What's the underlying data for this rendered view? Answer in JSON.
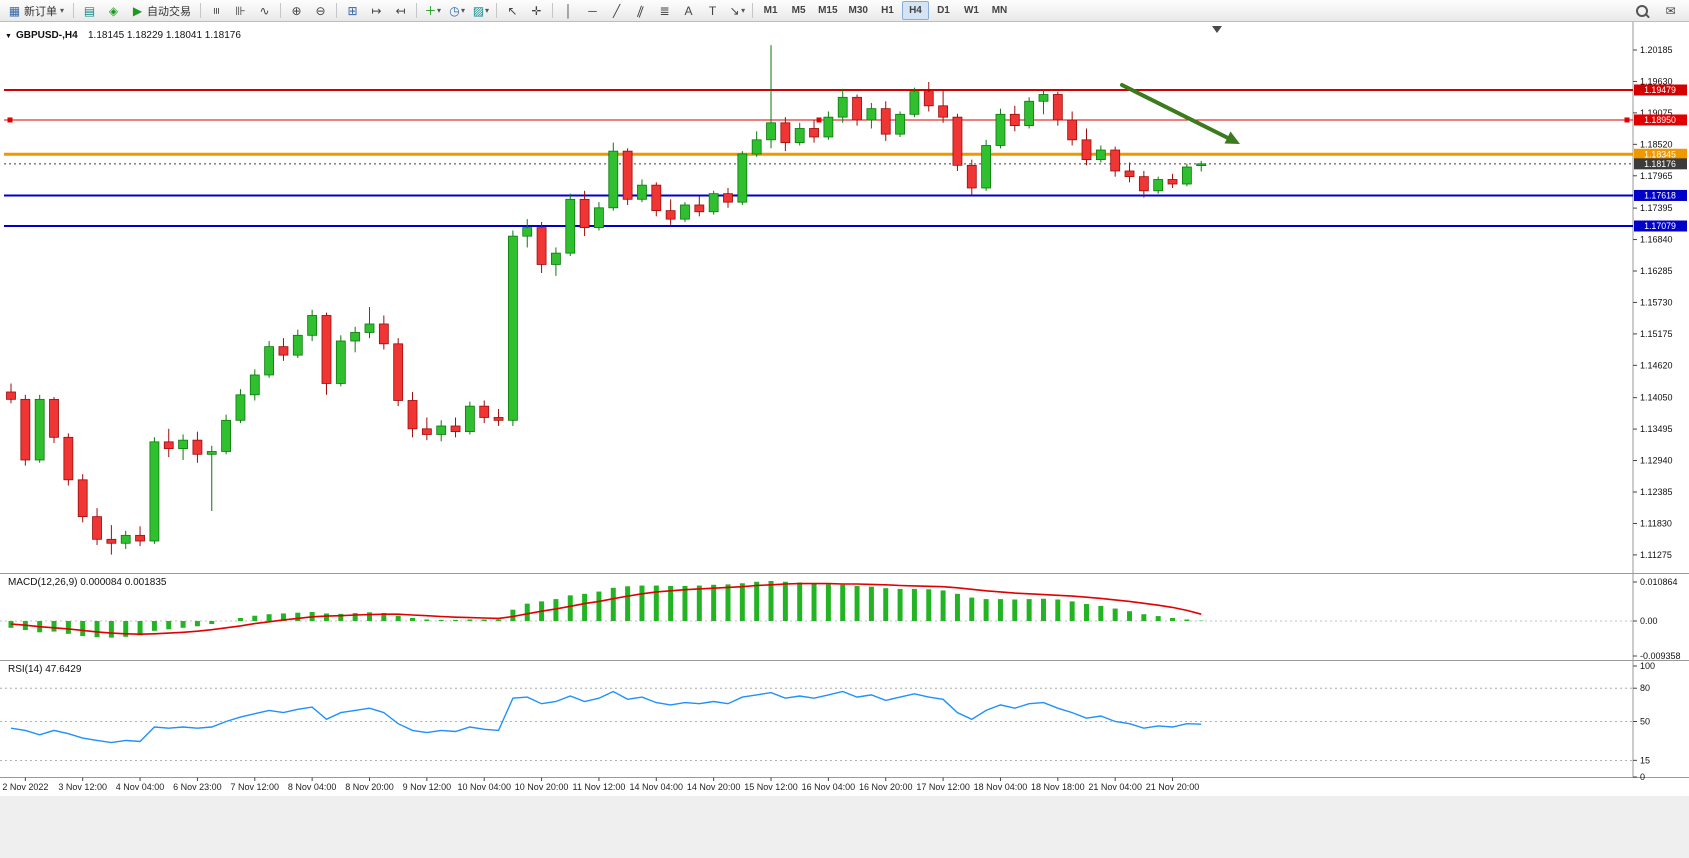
{
  "window": {
    "toolbar": {
      "new_order": "新订单",
      "autotrading": "自动交易",
      "timeframes": [
        "M1",
        "M5",
        "M15",
        "M30",
        "H1",
        "H4",
        "D1",
        "W1",
        "MN"
      ],
      "active_timeframe": "H4"
    },
    "icons": {
      "caret": "▾",
      "new_order": "▦",
      "terminal": "▤",
      "metaeditor": "◈",
      "autotrading_play": "▶",
      "bar_chart": "≡",
      "candlestick_chart": "⊪",
      "line_chart": "∿",
      "zoom_in": "⊕",
      "zoom_out": "⊖",
      "tile_windows": "⊞",
      "auto_scroll": "↦",
      "chart_shift": "↤",
      "indicators_add": "＋",
      "periods": "◷",
      "templates": "▨",
      "cursor": "↖",
      "crosshair": "✛",
      "vertical_line": "│",
      "horizontal_line": "─",
      "trendline": "╱",
      "channel": "∥",
      "fibonacci": "≣",
      "text": "A",
      "text_label": "T",
      "arrows": "↘",
      "chat": "✉",
      "search": "css-magnifier",
      "collapse": "▼"
    }
  },
  "chart": {
    "symbol_label": "GBPUSD-,H4",
    "oh": "1.18145",
    "ohlc": "1.18145 1.18229 1.18041 1.18176",
    "bid_price": "1.18176",
    "price_axis_ticks": [
      "1.20185",
      "1.19630",
      "1.19075",
      "1.18520",
      "1.17965",
      "1.17395",
      "1.16840",
      "1.16285",
      "1.15730",
      "1.15175",
      "1.14620",
      "1.14050",
      "1.13495",
      "1.12940",
      "1.12385",
      "1.11830",
      "1.11275"
    ],
    "time_axis_labels": [
      "2 Nov 2022",
      "3 Nov 12:00",
      "4 Nov 04:00",
      "6 Nov 23:00",
      "7 Nov 12:00",
      "8 Nov 04:00",
      "8 Nov 20:00",
      "9 Nov 12:00",
      "10 Nov 04:00",
      "10 Nov 20:00",
      "11 Nov 12:00",
      "14 Nov 04:00",
      "14 Nov 20:00",
      "15 Nov 12:00",
      "16 Nov 04:00",
      "16 Nov 20:00",
      "17 Nov 12:00",
      "18 Nov 04:00",
      "18 Nov 18:00",
      "21 Nov 04:00",
      "21 Nov 20:00"
    ],
    "hlines": [
      {
        "price": "1.19479",
        "color": "#d20000",
        "width": 2
      },
      {
        "price": "1.18950",
        "color": "#e00000",
        "width": 1,
        "selected": true
      },
      {
        "price": "1.18345",
        "color": "#f09800",
        "width": 3
      },
      {
        "price": "1.17618",
        "color": "#0000c8",
        "width": 2
      },
      {
        "price": "1.17079",
        "color": "#0000c8",
        "width": 2
      }
    ],
    "trend_arrow": {
      "color": "#3c7a1e",
      "direction": "down-right"
    },
    "macd_label": "MACD(12,26,9) 0.000084 0.001835",
    "macd_axis": [
      "0.010864",
      "0.00",
      "-0.009358"
    ],
    "rsi_label": "RSI(14) 47.6429",
    "rsi_levels": [
      "100",
      "80",
      "50",
      "15",
      "0"
    ]
  },
  "colors": {
    "up": "#2fbf2f",
    "up_edge": "#0b7a0b",
    "down": "#f03535",
    "down_edge": "#9e0b0b",
    "macd_hist": "#22b422",
    "macd_signal": "#e00000",
    "rsi_line": "#1e90ff",
    "bid_line": "#3c3c3c",
    "axis_text": "#111111"
  },
  "chart_data": {
    "type": "candlestick",
    "symbol": "GBPUSD",
    "timeframe": "H4",
    "title": "GBPUSD-,H4",
    "ohlc_current": [
      1.18145,
      1.18229,
      1.18041,
      1.18176
    ],
    "price_range_visible": [
      1.11275,
      1.20185
    ],
    "candles": [
      [
        1.1415,
        1.143,
        1.1395,
        1.1402
      ],
      [
        1.1402,
        1.141,
        1.1285,
        1.1295
      ],
      [
        1.1295,
        1.141,
        1.129,
        1.1402
      ],
      [
        1.1402,
        1.1406,
        1.1325,
        1.1335
      ],
      [
        1.1335,
        1.1342,
        1.125,
        1.126
      ],
      [
        1.126,
        1.127,
        1.1185,
        1.1195
      ],
      [
        1.1195,
        1.121,
        1.1145,
        1.1155
      ],
      [
        1.1155,
        1.118,
        1.1128,
        1.1148
      ],
      [
        1.1148,
        1.117,
        1.1138,
        1.1162
      ],
      [
        1.1162,
        1.1178,
        1.1143,
        1.1152
      ],
      [
        1.1152,
        1.1335,
        1.1147,
        1.1327
      ],
      [
        1.1327,
        1.135,
        1.13,
        1.1315
      ],
      [
        1.1315,
        1.134,
        1.1295,
        1.133
      ],
      [
        1.133,
        1.1345,
        1.129,
        1.1305
      ],
      [
        1.1305,
        1.132,
        1.1205,
        1.131
      ],
      [
        1.131,
        1.1375,
        1.1305,
        1.1365
      ],
      [
        1.1365,
        1.142,
        1.136,
        1.141
      ],
      [
        1.141,
        1.1455,
        1.14,
        1.1445
      ],
      [
        1.1445,
        1.1505,
        1.144,
        1.1495
      ],
      [
        1.1495,
        1.151,
        1.147,
        1.148
      ],
      [
        1.148,
        1.1525,
        1.1475,
        1.1515
      ],
      [
        1.1515,
        1.156,
        1.1505,
        1.155
      ],
      [
        1.155,
        1.1555,
        1.141,
        1.143
      ],
      [
        1.143,
        1.1515,
        1.1425,
        1.1505
      ],
      [
        1.1505,
        1.153,
        1.1485,
        1.152
      ],
      [
        1.152,
        1.1565,
        1.151,
        1.1535
      ],
      [
        1.1535,
        1.155,
        1.149,
        1.15
      ],
      [
        1.15,
        1.151,
        1.139,
        1.14
      ],
      [
        1.14,
        1.1415,
        1.1335,
        1.135
      ],
      [
        1.135,
        1.137,
        1.133,
        1.134
      ],
      [
        1.134,
        1.1365,
        1.1328,
        1.1355
      ],
      [
        1.1355,
        1.137,
        1.1335,
        1.1345
      ],
      [
        1.1345,
        1.1398,
        1.134,
        1.139
      ],
      [
        1.139,
        1.14,
        1.136,
        1.137
      ],
      [
        1.137,
        1.1385,
        1.1355,
        1.1365
      ],
      [
        1.1365,
        1.17,
        1.1355,
        1.169
      ],
      [
        1.169,
        1.172,
        1.167,
        1.1705
      ],
      [
        1.1705,
        1.1715,
        1.1625,
        1.164
      ],
      [
        1.164,
        1.167,
        1.162,
        1.166
      ],
      [
        1.166,
        1.1765,
        1.1655,
        1.1755
      ],
      [
        1.1755,
        1.177,
        1.169,
        1.1705
      ],
      [
        1.1705,
        1.175,
        1.17,
        1.174
      ],
      [
        1.174,
        1.1855,
        1.1735,
        1.184
      ],
      [
        1.184,
        1.1845,
        1.1745,
        1.1755
      ],
      [
        1.1755,
        1.179,
        1.175,
        1.178
      ],
      [
        1.178,
        1.1785,
        1.1725,
        1.1735
      ],
      [
        1.1735,
        1.1755,
        1.171,
        1.172
      ],
      [
        1.172,
        1.175,
        1.1715,
        1.1745
      ],
      [
        1.1745,
        1.176,
        1.1725,
        1.1733
      ],
      [
        1.1733,
        1.177,
        1.1728,
        1.1765
      ],
      [
        1.1765,
        1.1775,
        1.174,
        1.175
      ],
      [
        1.175,
        1.184,
        1.1745,
        1.1835
      ],
      [
        1.1835,
        1.1875,
        1.183,
        1.186
      ],
      [
        1.186,
        1.2027,
        1.1845,
        1.189
      ],
      [
        1.189,
        1.19,
        1.184,
        1.1855
      ],
      [
        1.1855,
        1.189,
        1.185,
        1.188
      ],
      [
        1.188,
        1.1895,
        1.1855,
        1.1865
      ],
      [
        1.1865,
        1.191,
        1.186,
        1.19
      ],
      [
        1.19,
        1.195,
        1.189,
        1.1935
      ],
      [
        1.1935,
        1.194,
        1.1885,
        1.1895
      ],
      [
        1.1895,
        1.1925,
        1.188,
        1.1915
      ],
      [
        1.1915,
        1.1928,
        1.1858,
        1.187
      ],
      [
        1.187,
        1.191,
        1.1865,
        1.1905
      ],
      [
        1.1905,
        1.1952,
        1.19,
        1.1945
      ],
      [
        1.1945,
        1.1962,
        1.191,
        1.192
      ],
      [
        1.192,
        1.1948,
        1.189,
        1.19
      ],
      [
        1.19,
        1.1906,
        1.1805,
        1.1815
      ],
      [
        1.1815,
        1.1825,
        1.1762,
        1.1775
      ],
      [
        1.1775,
        1.186,
        1.177,
        1.185
      ],
      [
        1.185,
        1.1915,
        1.1845,
        1.1905
      ],
      [
        1.1905,
        1.192,
        1.1875,
        1.1885
      ],
      [
        1.1885,
        1.1935,
        1.188,
        1.1928
      ],
      [
        1.1928,
        1.1948,
        1.1905,
        1.194
      ],
      [
        1.194,
        1.1945,
        1.1885,
        1.1895
      ],
      [
        1.1895,
        1.191,
        1.185,
        1.186
      ],
      [
        1.186,
        1.188,
        1.1815,
        1.1825
      ],
      [
        1.1825,
        1.185,
        1.182,
        1.1842
      ],
      [
        1.1842,
        1.1848,
        1.1795,
        1.1805
      ],
      [
        1.1805,
        1.182,
        1.1785,
        1.1795
      ],
      [
        1.1795,
        1.1805,
        1.1758,
        1.177
      ],
      [
        1.177,
        1.1795,
        1.1765,
        1.179
      ],
      [
        1.179,
        1.18,
        1.1775,
        1.1782
      ],
      [
        1.1782,
        1.1818,
        1.1778,
        1.1812
      ],
      [
        1.18145,
        1.18229,
        1.18041,
        1.18176
      ]
    ],
    "macd": {
      "histogram": [
        -0.0018,
        -0.0024,
        -0.003,
        -0.0028,
        -0.0034,
        -0.004,
        -0.0043,
        -0.0044,
        -0.0042,
        -0.0038,
        -0.0026,
        -0.0022,
        -0.0018,
        -0.0014,
        -0.0008,
        0.0,
        0.0008,
        0.0014,
        0.0018,
        0.002,
        0.0022,
        0.0024,
        0.002,
        0.0019,
        0.0021,
        0.0023,
        0.0021,
        0.0014,
        0.0008,
        0.0004,
        0.0003,
        0.0003,
        0.0004,
        0.0004,
        0.0004,
        0.003,
        0.0046,
        0.0052,
        0.0058,
        0.0068,
        0.0072,
        0.0078,
        0.0088,
        0.0092,
        0.0094,
        0.0094,
        0.0093,
        0.0093,
        0.0094,
        0.0096,
        0.0097,
        0.01,
        0.0104,
        0.0106,
        0.0104,
        0.0102,
        0.0099,
        0.0097,
        0.0096,
        0.0093,
        0.0091,
        0.0087,
        0.0085,
        0.0085,
        0.0084,
        0.0081,
        0.0072,
        0.0062,
        0.0058,
        0.0058,
        0.0057,
        0.0058,
        0.0059,
        0.0057,
        0.0052,
        0.0045,
        0.004,
        0.0033,
        0.0026,
        0.0018,
        0.0013,
        0.0008,
        0.0004,
        0.0001
      ],
      "signal": [
        -0.0008,
        -0.0011,
        -0.0015,
        -0.0018,
        -0.0021,
        -0.0025,
        -0.0029,
        -0.0032,
        -0.0034,
        -0.0035,
        -0.0034,
        -0.0032,
        -0.003,
        -0.0027,
        -0.0023,
        -0.0018,
        -0.0013,
        -0.0007,
        -0.0002,
        0.0003,
        0.0007,
        0.0011,
        0.0013,
        0.0014,
        0.0016,
        0.0017,
        0.0018,
        0.0018,
        0.0016,
        0.0014,
        0.0012,
        0.001,
        0.0009,
        0.0008,
        0.0007,
        0.0012,
        0.0019,
        0.0026,
        0.0032,
        0.0039,
        0.0046,
        0.0052,
        0.0059,
        0.0066,
        0.0072,
        0.0077,
        0.008,
        0.0083,
        0.0085,
        0.0087,
        0.0089,
        0.0091,
        0.0094,
        0.0096,
        0.0098,
        0.0099,
        0.0099,
        0.0099,
        0.0098,
        0.0098,
        0.0097,
        0.0096,
        0.0094,
        0.0093,
        0.0092,
        0.0091,
        0.0088,
        0.0084,
        0.008,
        0.0077,
        0.0074,
        0.0072,
        0.007,
        0.0068,
        0.0066,
        0.0063,
        0.006,
        0.0056,
        0.0052,
        0.0047,
        0.0042,
        0.0036,
        0.0028,
        0.0018
      ],
      "current_values": [
        8.4e-05,
        0.001835
      ]
    },
    "rsi": [
      44,
      42,
      38,
      42,
      39,
      35,
      33,
      31,
      33,
      32,
      45,
      44,
      45,
      44,
      45,
      50,
      54,
      57,
      60,
      58,
      61,
      63,
      52,
      58,
      60,
      62,
      58,
      48,
      42,
      40,
      42,
      41,
      45,
      43,
      42,
      71,
      72,
      66,
      68,
      73,
      68,
      71,
      77,
      70,
      72,
      67,
      65,
      67,
      66,
      68,
      66,
      72,
      74,
      76,
      71,
      73,
      71,
      74,
      77,
      72,
      74,
      69,
      72,
      75,
      72,
      70,
      58,
      52,
      60,
      65,
      62,
      66,
      67,
      62,
      58,
      53,
      55,
      50,
      48,
      44,
      46,
      45,
      48,
      47.6
    ],
    "rsi_current": 47.6429,
    "hlines": [
      1.19479,
      1.1895,
      1.18345,
      1.17618,
      1.17079
    ],
    "x_labels": [
      "2 Nov 2022",
      "3 Nov 12:00",
      "4 Nov 04:00",
      "6 Nov 23:00",
      "7 Nov 12:00",
      "8 Nov 04:00",
      "8 Nov 20:00",
      "9 Nov 12:00",
      "10 Nov 04:00",
      "10 Nov 20:00",
      "11 Nov 12:00",
      "14 Nov 04:00",
      "14 Nov 20:00",
      "15 Nov 12:00",
      "16 Nov 04:00",
      "16 Nov 20:00",
      "17 Nov 12:00",
      "18 Nov 04:00",
      "18 Nov 18:00",
      "21 Nov 04:00",
      "21 Nov 20:00"
    ]
  }
}
